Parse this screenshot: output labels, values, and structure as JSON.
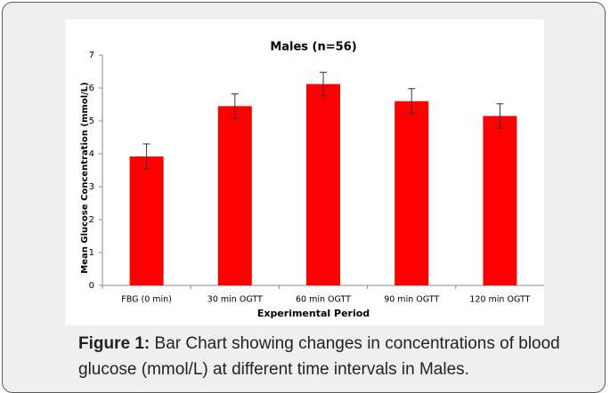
{
  "chart_data": {
    "type": "bar",
    "title": "Males (n=56)",
    "categories": [
      "FBG (0 min)",
      "30 min OGTT",
      "60 min OGTT",
      "90 min OGTT",
      "120 min OGTT"
    ],
    "values": [
      3.92,
      5.45,
      6.12,
      5.6,
      5.15
    ],
    "errors": [
      0.38,
      0.37,
      0.36,
      0.38,
      0.37
    ],
    "color": "#ff0000",
    "x_label": "Experimental Period",
    "y_label": "Mean Glucose Concentration (mmol/L)",
    "ylim": [
      0,
      7
    ],
    "yticks": [
      0,
      1,
      2,
      3,
      4,
      5,
      6,
      7
    ],
    "grid": false
  },
  "caption": {
    "label": "Figure 1:",
    "text": "Bar Chart showing changes in concentrations of blood glucose (mmol/L) at different time intervals in Males."
  }
}
